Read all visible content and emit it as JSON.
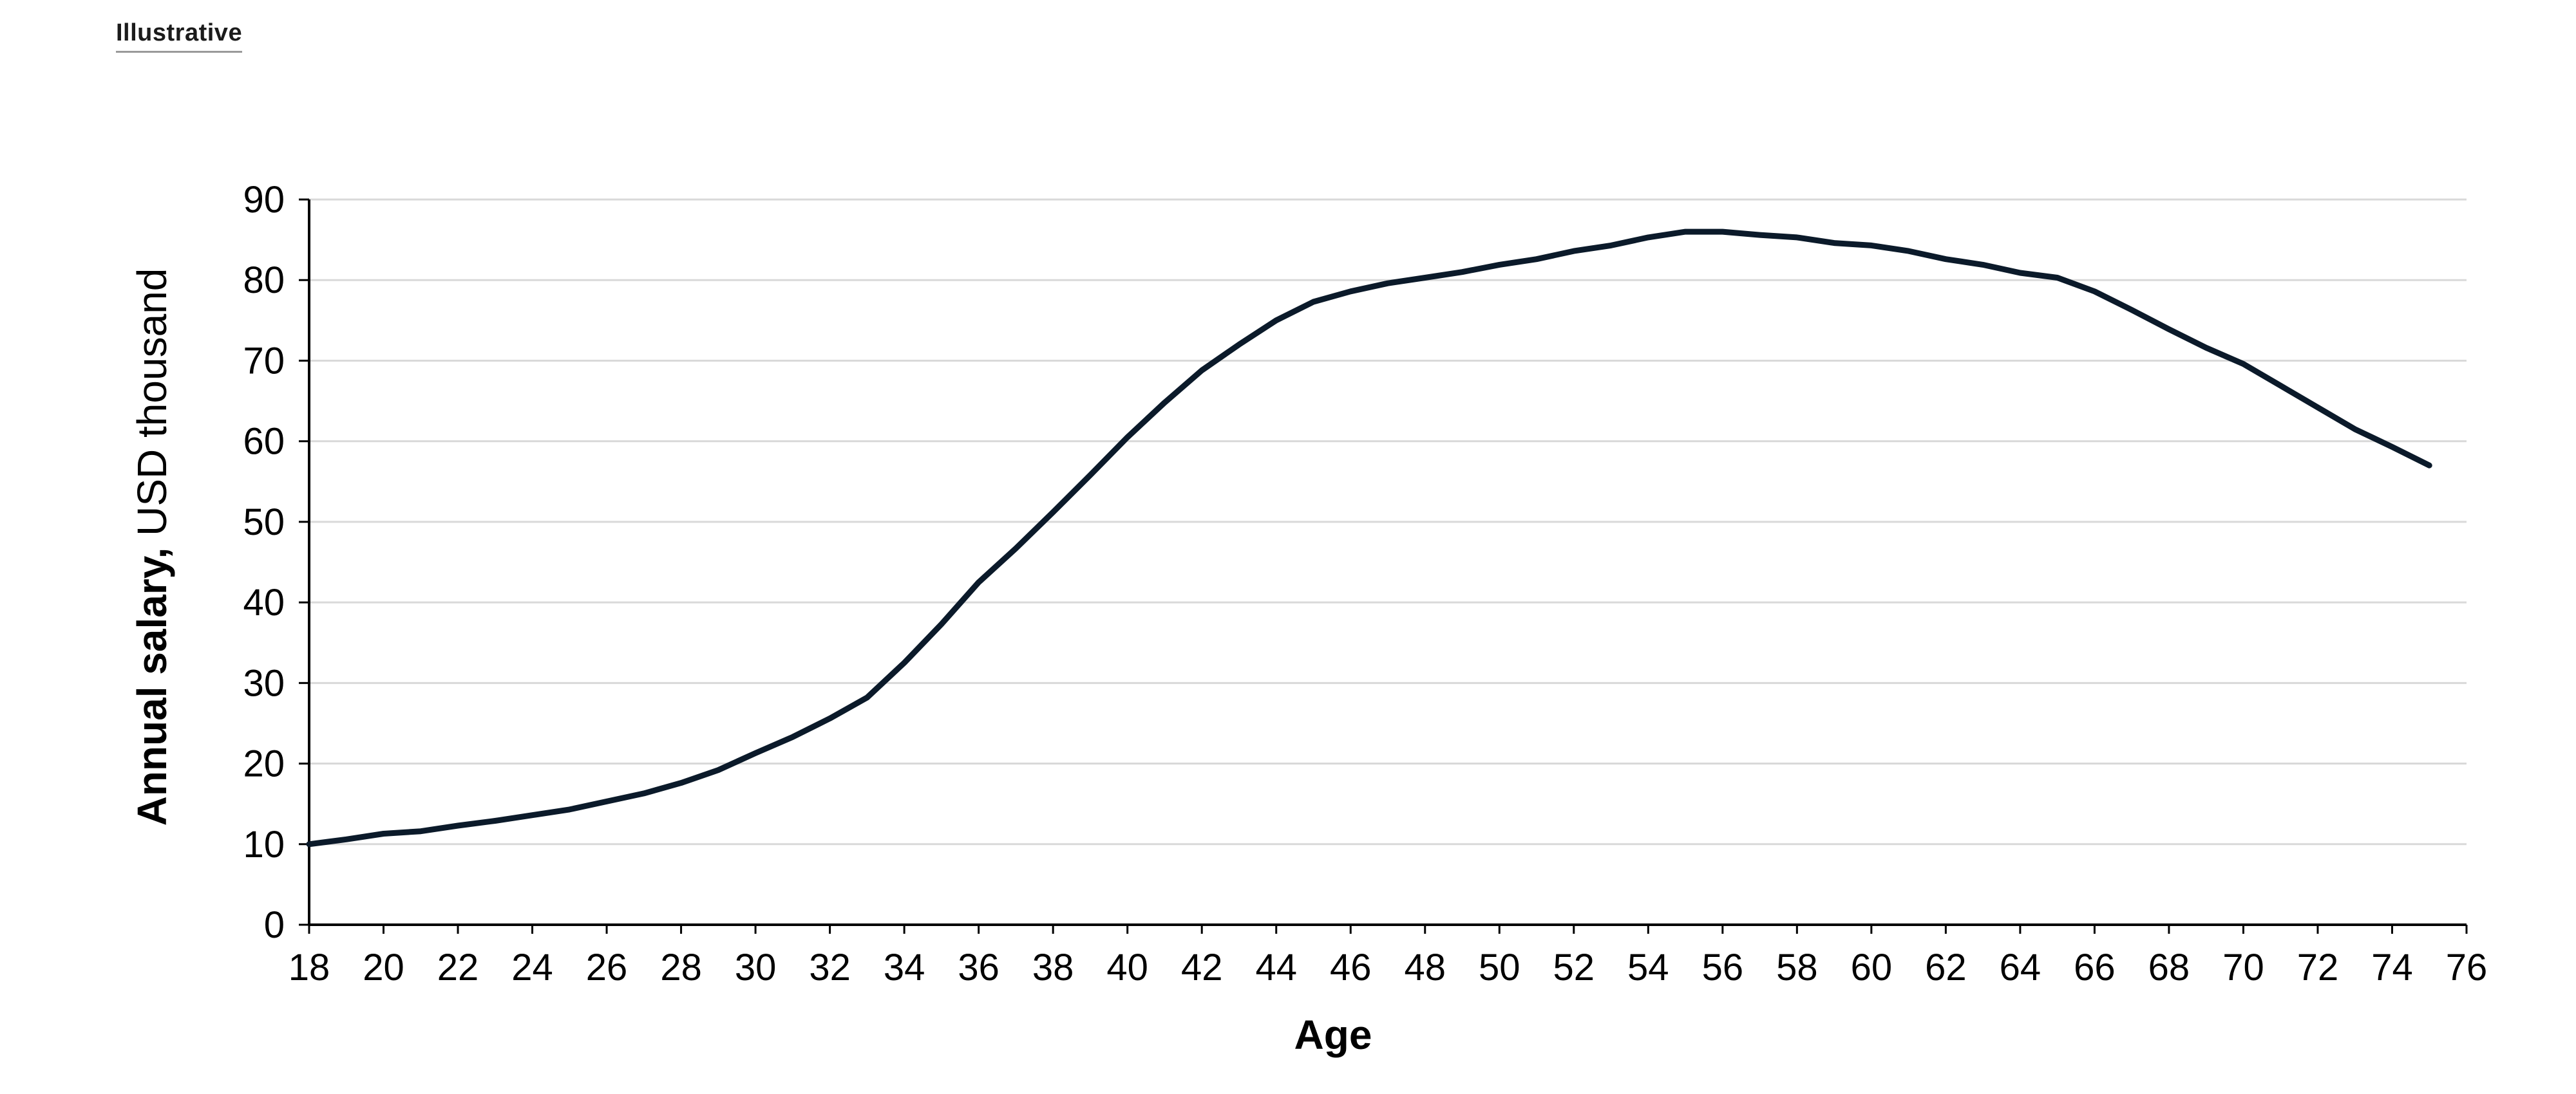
{
  "tag": "Illustrative",
  "chart_data": {
    "type": "line",
    "xlabel": "Age",
    "ylabel_bold": "Annual salary,",
    "ylabel_rest": " USD thousand",
    "xlim": [
      18,
      76
    ],
    "ylim": [
      0,
      90
    ],
    "xticks": [
      18,
      20,
      22,
      24,
      26,
      28,
      30,
      32,
      34,
      36,
      38,
      40,
      42,
      44,
      46,
      48,
      50,
      52,
      54,
      56,
      58,
      60,
      62,
      64,
      66,
      68,
      70,
      72,
      74,
      76
    ],
    "yticks": [
      0,
      10,
      20,
      30,
      40,
      50,
      60,
      70,
      80,
      90
    ],
    "grid": true,
    "line_color": "#0b1a2a",
    "series": [
      {
        "x": [
          18,
          19,
          20,
          21,
          22,
          23,
          24,
          25,
          26,
          27,
          28,
          29,
          30,
          31,
          32,
          33,
          34,
          35,
          36,
          37,
          38,
          39,
          40,
          41,
          42,
          43,
          44,
          45,
          46,
          47,
          48,
          49,
          50,
          51,
          52,
          53,
          54,
          55,
          56,
          57,
          58,
          59,
          60,
          61,
          62,
          63,
          64,
          65,
          66,
          67,
          68,
          69,
          70,
          71,
          72,
          73,
          74,
          75
        ],
        "values": [
          10.0,
          10.6,
          11.3,
          11.6,
          12.3,
          12.9,
          13.6,
          14.3,
          15.3,
          16.3,
          17.6,
          19.2,
          21.3,
          23.3,
          25.6,
          28.2,
          32.5,
          37.3,
          42.5,
          46.7,
          51.2,
          55.8,
          60.5,
          64.8,
          68.8,
          72.0,
          75.0,
          77.3,
          78.6,
          79.6,
          80.3,
          81.0,
          81.9,
          82.6,
          83.6,
          84.3,
          85.3,
          86.0,
          86.0,
          85.6,
          85.3,
          84.6,
          84.3,
          83.6,
          82.6,
          81.9,
          80.9,
          80.3,
          78.6,
          76.3,
          73.9,
          71.6,
          69.6,
          66.9,
          64.2,
          61.5,
          59.3,
          57.0
        ]
      }
    ]
  }
}
